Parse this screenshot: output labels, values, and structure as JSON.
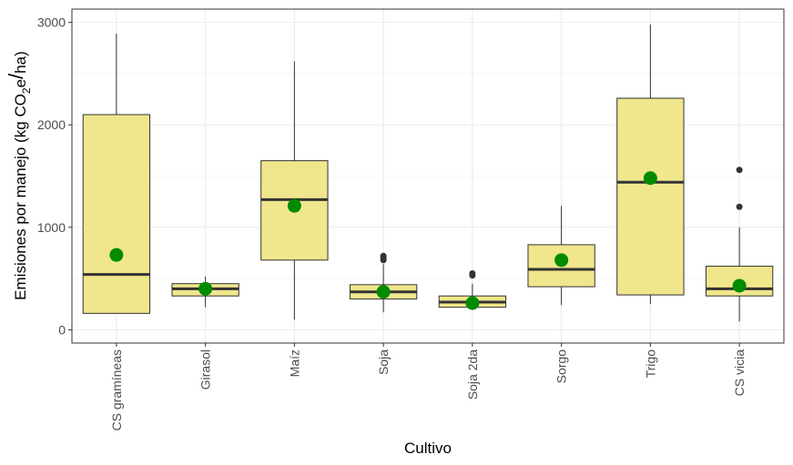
{
  "chart_data": {
    "type": "boxplot",
    "xlabel": "Cultivo",
    "ylabel": {
      "prefix": "Emisiones por manejo (kg CO",
      "subscript": "2",
      "suffix": "e",
      "slash": "/",
      "unit": "ha",
      "close": ")"
    },
    "ylim": [
      -130,
      3130
    ],
    "yticks": [
      0,
      1000,
      2000,
      3000
    ],
    "ytick_labels": [
      "0",
      "1000",
      "2000",
      "3000"
    ],
    "grid": true,
    "colors": {
      "box_fill": "#f0e68c",
      "box_stroke": "#333333",
      "mean_point": "#008b00",
      "outlier": "#333333",
      "grid": "#ebebeb"
    },
    "categories": [
      "CS gramíneas",
      "Girasol",
      "Maíz",
      "Soja",
      "Soja 2da",
      "Sorgo",
      "Trigo",
      "CS vicia"
    ],
    "boxes": [
      {
        "min": 160,
        "q1": 160,
        "median": 540,
        "q3": 2100,
        "max": 2890,
        "mean": 730,
        "outliers": []
      },
      {
        "min": 220,
        "q1": 330,
        "median": 400,
        "q3": 450,
        "max": 520,
        "mean": 400,
        "outliers": []
      },
      {
        "min": 100,
        "q1": 680,
        "median": 1270,
        "q3": 1650,
        "max": 2620,
        "mean": 1210,
        "outliers": []
      },
      {
        "min": 170,
        "q1": 300,
        "median": 370,
        "q3": 440,
        "max": 640,
        "mean": 370,
        "outliers": [
          680,
          700,
          720
        ]
      },
      {
        "min": 220,
        "q1": 220,
        "median": 270,
        "q3": 330,
        "max": 450,
        "mean": 260,
        "outliers": [
          530,
          550
        ]
      },
      {
        "min": 240,
        "q1": 420,
        "median": 590,
        "q3": 830,
        "max": 1210,
        "mean": 680,
        "outliers": []
      },
      {
        "min": 250,
        "q1": 340,
        "median": 1440,
        "q3": 2260,
        "max": 2980,
        "mean": 1480,
        "outliers": []
      },
      {
        "min": 80,
        "q1": 330,
        "median": 400,
        "q3": 620,
        "max": 1000,
        "mean": 430,
        "outliers": [
          1200,
          1560
        ]
      }
    ]
  }
}
